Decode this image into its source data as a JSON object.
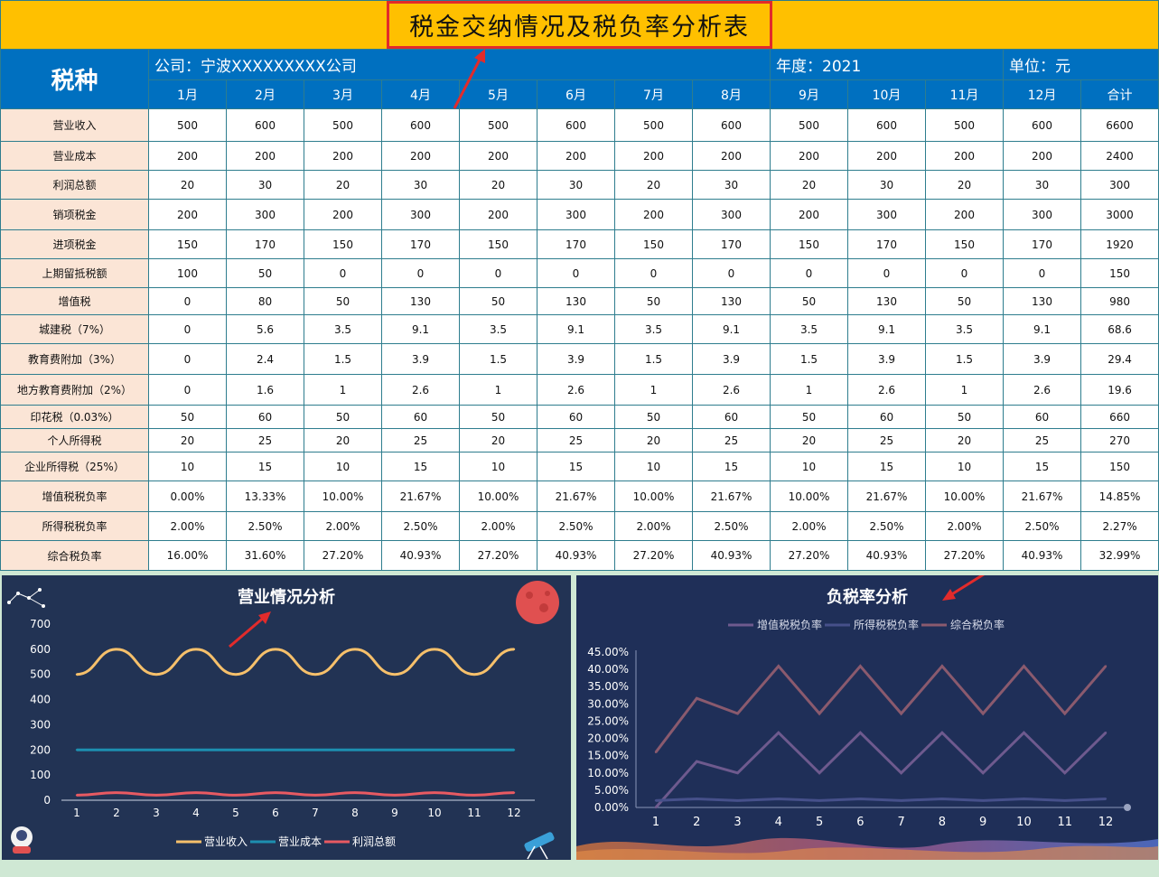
{
  "header": {
    "title": "税金交纳情况及税负率分析表",
    "tax_type": "税种",
    "company": "公司：宁波XXXXXXXXX公司",
    "year": "年度：2021",
    "unit": "单位：元"
  },
  "columns": [
    "1月",
    "2月",
    "3月",
    "4月",
    "5月",
    "6月",
    "7月",
    "8月",
    "9月",
    "10月",
    "11月",
    "12月",
    "合计"
  ],
  "rows": [
    {
      "label": "营业收入",
      "values": [
        "500",
        "600",
        "500",
        "600",
        "500",
        "600",
        "500",
        "600",
        "500",
        "600",
        "500",
        "600",
        "6600"
      ]
    },
    {
      "label": "营业成本",
      "values": [
        "200",
        "200",
        "200",
        "200",
        "200",
        "200",
        "200",
        "200",
        "200",
        "200",
        "200",
        "200",
        "2400"
      ]
    },
    {
      "label": "利润总额",
      "values": [
        "20",
        "30",
        "20",
        "30",
        "20",
        "30",
        "20",
        "30",
        "20",
        "30",
        "20",
        "30",
        "300"
      ]
    },
    {
      "label": "销项税金",
      "values": [
        "200",
        "300",
        "200",
        "300",
        "200",
        "300",
        "200",
        "300",
        "200",
        "300",
        "200",
        "300",
        "3000"
      ]
    },
    {
      "label": "进项税金",
      "values": [
        "150",
        "170",
        "150",
        "170",
        "150",
        "170",
        "150",
        "170",
        "150",
        "170",
        "150",
        "170",
        "1920"
      ]
    },
    {
      "label": "上期留抵税额",
      "values": [
        "100",
        "50",
        "0",
        "0",
        "0",
        "0",
        "0",
        "0",
        "0",
        "0",
        "0",
        "0",
        "150"
      ]
    },
    {
      "label": "增值税",
      "values": [
        "0",
        "80",
        "50",
        "130",
        "50",
        "130",
        "50",
        "130",
        "50",
        "130",
        "50",
        "130",
        "980"
      ]
    },
    {
      "label": "城建税（7%）",
      "values": [
        "0",
        "5.6",
        "3.5",
        "9.1",
        "3.5",
        "9.1",
        "3.5",
        "9.1",
        "3.5",
        "9.1",
        "3.5",
        "9.1",
        "68.6"
      ]
    },
    {
      "label": "教育费附加（3%）",
      "values": [
        "0",
        "2.4",
        "1.5",
        "3.9",
        "1.5",
        "3.9",
        "1.5",
        "3.9",
        "1.5",
        "3.9",
        "1.5",
        "3.9",
        "29.4"
      ]
    },
    {
      "label": "地方教育费附加（2%）",
      "values": [
        "0",
        "1.6",
        "1",
        "2.6",
        "1",
        "2.6",
        "1",
        "2.6",
        "1",
        "2.6",
        "1",
        "2.6",
        "19.6"
      ]
    },
    {
      "label": "印花税（0.03%）",
      "values": [
        "50",
        "60",
        "50",
        "60",
        "50",
        "60",
        "50",
        "60",
        "50",
        "60",
        "50",
        "60",
        "660"
      ]
    },
    {
      "label": "个人所得税",
      "values": [
        "20",
        "25",
        "20",
        "25",
        "20",
        "25",
        "20",
        "25",
        "20",
        "25",
        "20",
        "25",
        "270"
      ]
    },
    {
      "label": "企业所得税（25%）",
      "values": [
        "10",
        "15",
        "10",
        "15",
        "10",
        "15",
        "10",
        "15",
        "10",
        "15",
        "10",
        "15",
        "150"
      ]
    },
    {
      "label": "增值税税负率",
      "values": [
        "0.00%",
        "13.33%",
        "10.00%",
        "21.67%",
        "10.00%",
        "21.67%",
        "10.00%",
        "21.67%",
        "10.00%",
        "21.67%",
        "10.00%",
        "21.67%",
        "14.85%"
      ]
    },
    {
      "label": "所得税税负率",
      "values": [
        "2.00%",
        "2.50%",
        "2.00%",
        "2.50%",
        "2.00%",
        "2.50%",
        "2.00%",
        "2.50%",
        "2.00%",
        "2.50%",
        "2.00%",
        "2.50%",
        "2.27%"
      ]
    },
    {
      "label": "综合税负率",
      "values": [
        "16.00%",
        "31.60%",
        "27.20%",
        "40.93%",
        "27.20%",
        "40.93%",
        "27.20%",
        "40.93%",
        "27.20%",
        "40.93%",
        "27.20%",
        "40.93%",
        "32.99%"
      ]
    }
  ],
  "colors": {
    "title_bg": "#ffc000",
    "header_bg": "#0070c0",
    "label_bg": "#fbe5d6",
    "accent_red": "#e22b2b"
  },
  "chart_data": [
    {
      "type": "line",
      "title": "营业情况分析",
      "x": [
        1,
        2,
        3,
        4,
        5,
        6,
        7,
        8,
        9,
        10,
        11,
        12
      ],
      "ylim": [
        0,
        700
      ],
      "yticks": [
        0,
        100,
        200,
        300,
        400,
        500,
        600,
        700
      ],
      "series": [
        {
          "name": "营业收入",
          "values": [
            500,
            600,
            500,
            600,
            500,
            600,
            500,
            600,
            500,
            600,
            500,
            600
          ],
          "color": "#f6c06b"
        },
        {
          "name": "营业成本",
          "values": [
            200,
            200,
            200,
            200,
            200,
            200,
            200,
            200,
            200,
            200,
            200,
            200
          ],
          "color": "#1d8fb0"
        },
        {
          "name": "利润总额",
          "values": [
            20,
            30,
            20,
            30,
            20,
            30,
            20,
            30,
            20,
            30,
            20,
            30
          ],
          "color": "#e85a62"
        }
      ],
      "legend": "bottom",
      "grid": false
    },
    {
      "type": "line",
      "title": "负税率分析",
      "x": [
        1,
        2,
        3,
        4,
        5,
        6,
        7,
        8,
        9,
        10,
        11,
        12
      ],
      "ylim": [
        0,
        0.45
      ],
      "yticks": [
        "0.00%",
        "5.00%",
        "10.00%",
        "15.00%",
        "20.00%",
        "25.00%",
        "30.00%",
        "35.00%",
        "40.00%",
        "45.00%"
      ],
      "series": [
        {
          "name": "增值税税负率",
          "values": [
            0,
            0.1333,
            0.1,
            0.2167,
            0.1,
            0.2167,
            0.1,
            0.2167,
            0.1,
            0.2167,
            0.1,
            0.2167
          ],
          "color": "#6e5a8e"
        },
        {
          "name": "所得税税负率",
          "values": [
            0.02,
            0.025,
            0.02,
            0.025,
            0.02,
            0.025,
            0.02,
            0.025,
            0.02,
            0.025,
            0.02,
            0.025
          ],
          "color": "#46508a"
        },
        {
          "name": "综合税负率",
          "values": [
            0.16,
            0.316,
            0.272,
            0.4093,
            0.272,
            0.4093,
            0.272,
            0.4093,
            0.272,
            0.4093,
            0.272,
            0.4093
          ],
          "color": "#8a5a6e"
        }
      ],
      "legend": "top",
      "grid": false
    }
  ]
}
